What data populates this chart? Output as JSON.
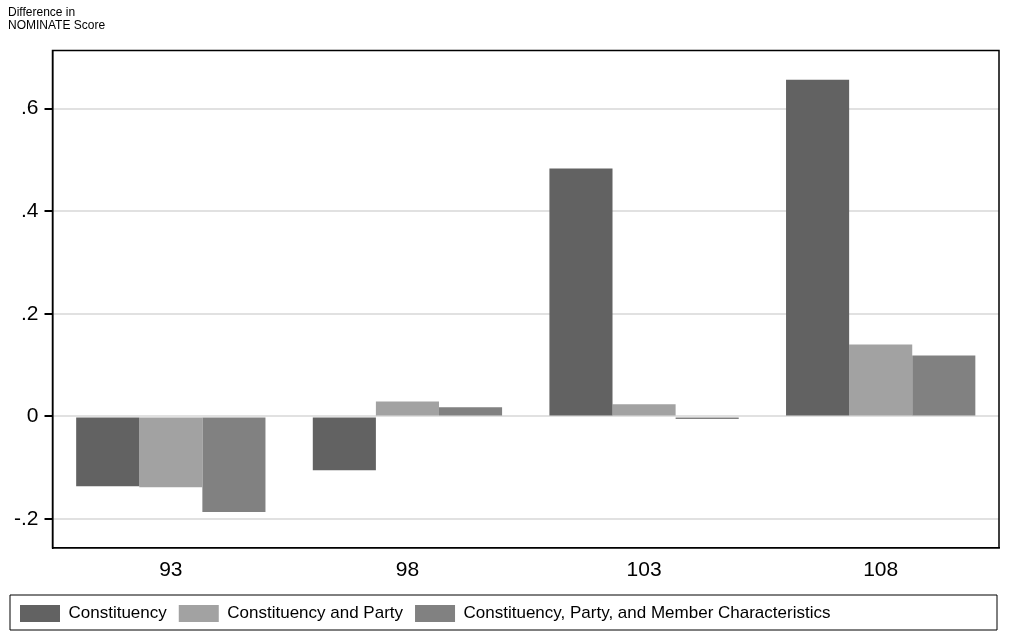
{
  "chart_data": {
    "type": "bar",
    "ylabel": "Difference in\nNOMINATE Score",
    "categories": [
      "93",
      "98",
      "103",
      "108"
    ],
    "series": [
      {
        "name": "Constituency",
        "color": "#626262",
        "values": [
          -0.136,
          -0.105,
          0.483,
          0.656
        ]
      },
      {
        "name": "Constituency and Party",
        "color": "#a2a2a2",
        "values": [
          -0.138,
          0.029,
          0.024,
          0.14
        ]
      },
      {
        "name": "Constituency, Party, and Member Characteristics",
        "color": "#818181",
        "values": [
          -0.186,
          0.018,
          -0.005,
          0.119
        ]
      }
    ],
    "ylim": [
      -0.256,
      0.713
    ],
    "yticks": [
      {
        "value": -0.2,
        "label": "-.2"
      },
      0,
      {
        "value": 0.2,
        "label": ".2"
      },
      {
        "value": 0.4,
        "label": ".4"
      },
      {
        "value": 0.6,
        "label": ".6"
      }
    ],
    "grid": "y",
    "legend": "bottom"
  }
}
